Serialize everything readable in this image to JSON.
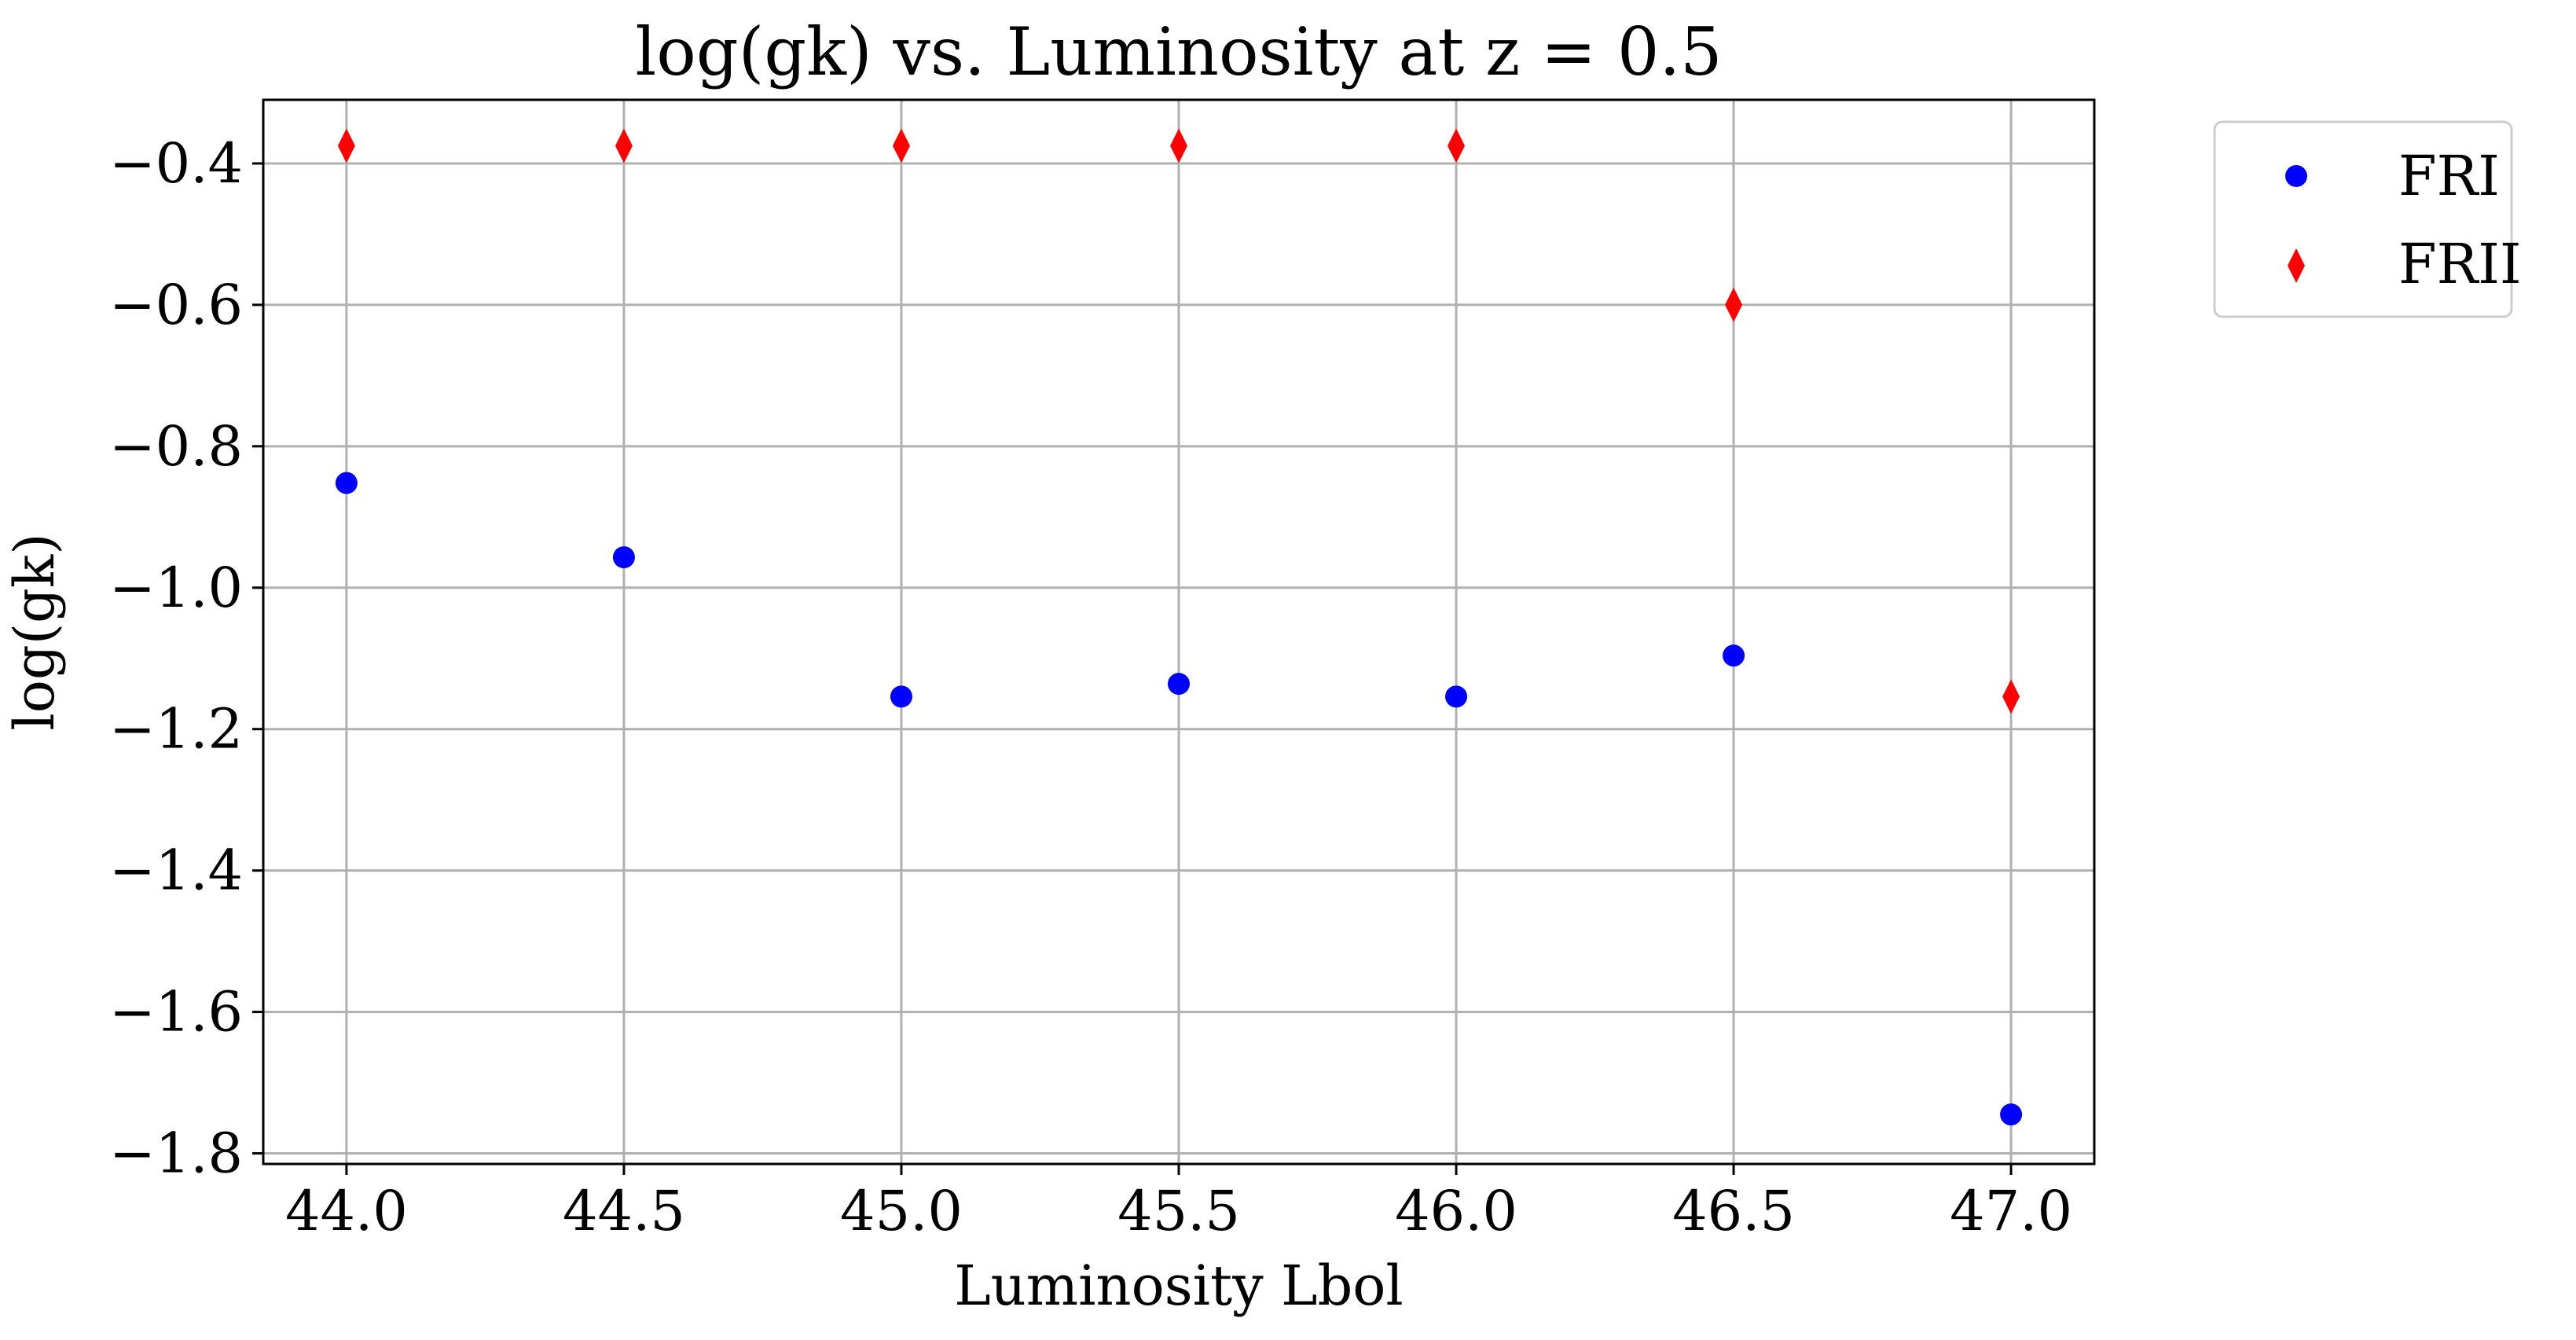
{
  "chart_data": {
    "type": "scatter",
    "title": "log(gk) vs. Luminosity at z = 0.5",
    "xlabel": "Luminosity Lbol",
    "ylabel": "log(gk)",
    "xlim": [
      43.85,
      47.15
    ],
    "ylim": [
      -1.815,
      -0.31
    ],
    "x_ticks": [
      44.0,
      44.5,
      45.0,
      45.5,
      46.0,
      46.5,
      47.0
    ],
    "x_tick_labels": [
      "44.0",
      "44.5",
      "45.0",
      "45.5",
      "46.0",
      "46.5",
      "47.0"
    ],
    "y_ticks": [
      -1.8,
      -1.6,
      -1.4,
      -1.2,
      -1.0,
      -0.8,
      -0.6,
      -0.4
    ],
    "y_tick_labels": [
      "−1.8",
      "−1.6",
      "−1.4",
      "−1.2",
      "−1.0",
      "−0.8",
      "−0.6",
      "−0.4"
    ],
    "grid": true,
    "legend_position": "outside-top-right",
    "series": [
      {
        "name": "FRI",
        "marker": "circle",
        "color": "#0000ff",
        "x": [
          44.0,
          44.5,
          45.0,
          45.5,
          46.0,
          46.5,
          47.0
        ],
        "y": [
          -0.852,
          -0.957,
          -1.154,
          -1.136,
          -1.154,
          -1.096,
          -1.745
        ]
      },
      {
        "name": "FRII",
        "marker": "diamond",
        "color": "#ff0000",
        "x": [
          44.0,
          44.5,
          45.0,
          45.5,
          46.0,
          46.5,
          47.0
        ],
        "y": [
          -0.375,
          -0.375,
          -0.375,
          -0.375,
          -0.375,
          -0.6,
          -1.154
        ]
      }
    ]
  }
}
